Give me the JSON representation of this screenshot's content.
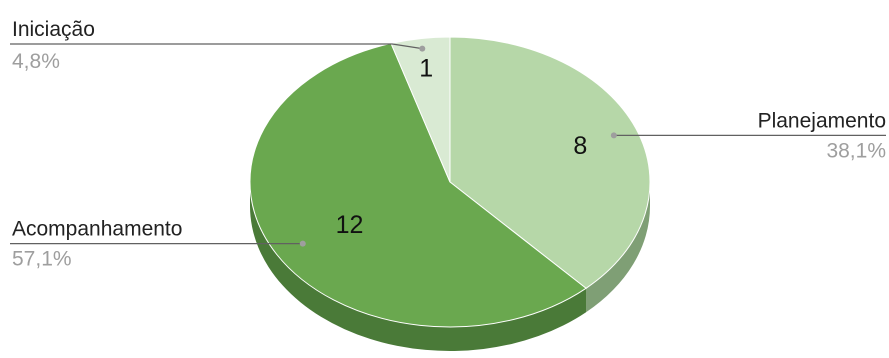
{
  "chart_data": {
    "type": "pie",
    "style": "3d",
    "title": "",
    "slices": [
      {
        "label": "Planejamento",
        "value": 8,
        "percent": "38,1%",
        "color": "#b6d7a8",
        "side_color": "#7f9f75"
      },
      {
        "label": "Acompanhamento",
        "value": 12,
        "percent": "57,1%",
        "color": "#6aa84f",
        "side_color": "#4a7a38"
      },
      {
        "label": "Iniciação",
        "value": 1,
        "percent": "4,8%",
        "color": "#d9ead3",
        "side_color": "#a8b8a2"
      }
    ],
    "legend": "none",
    "label_placement": "outside with leader lines"
  }
}
